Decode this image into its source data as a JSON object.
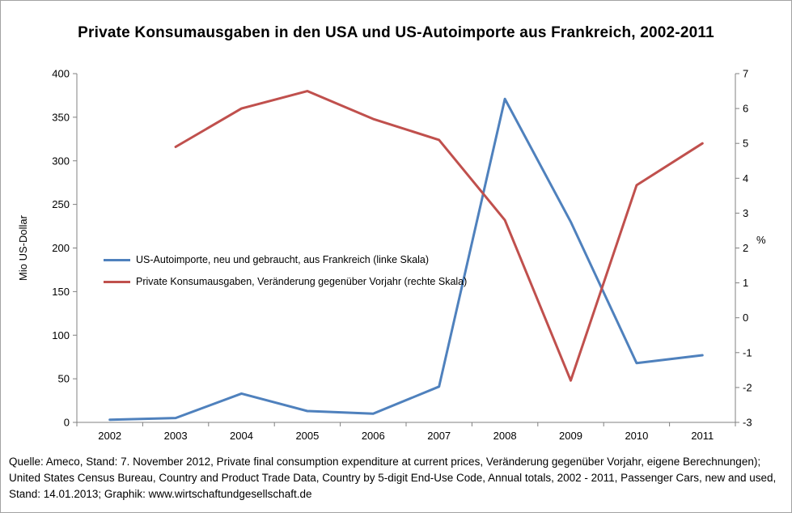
{
  "title": "Private Konsumausgaben in den USA und US-Autoimporte aus Frankreich, 2002-2011",
  "footer": "Quelle: Ameco, Stand: 7. November 2012, Private final consumption expenditure at current prices, Veränderung gegenüber Vorjahr, eigene Berechnungen); United States Census Bureau, Country and Product Trade Data, Country by 5-digit End-Use Code, Annual totals, 2002 - 2011,  Passenger Cars, new and used, Stand: 14.01.2013;  Graphik: www.wirtschaftundgesellschaft.de",
  "chart_data": {
    "type": "line",
    "title": "Private Konsumausgaben in den USA und US-Autoimporte aus Frankreich, 2002-2011",
    "categories": [
      "2002",
      "2003",
      "2004",
      "2005",
      "2006",
      "2007",
      "2008",
      "2009",
      "2010",
      "2011"
    ],
    "series": [
      {
        "name": "US-Autoimporte, neu und gebraucht, aus Frankreich (linke Skala)",
        "axis": "left",
        "color": "#4F81BD",
        "values": [
          3,
          5,
          33,
          13,
          10,
          41,
          371,
          230,
          68,
          77
        ]
      },
      {
        "name": "Private Konsumausgaben, Veränderung gegenüber Vorjahr (rechte Skala)",
        "axis": "right",
        "color": "#C0504D",
        "values": [
          null,
          4.9,
          6.0,
          6.5,
          5.7,
          5.1,
          2.8,
          -1.8,
          3.8,
          5.0
        ]
      }
    ],
    "left_axis": {
      "label": "Mio US-Dollar",
      "min": 0,
      "max": 400,
      "step": 50
    },
    "right_axis": {
      "label": "%",
      "min": -3,
      "max": 7,
      "step": 1
    },
    "grid": false,
    "legend_position": "inside-left-middle"
  }
}
